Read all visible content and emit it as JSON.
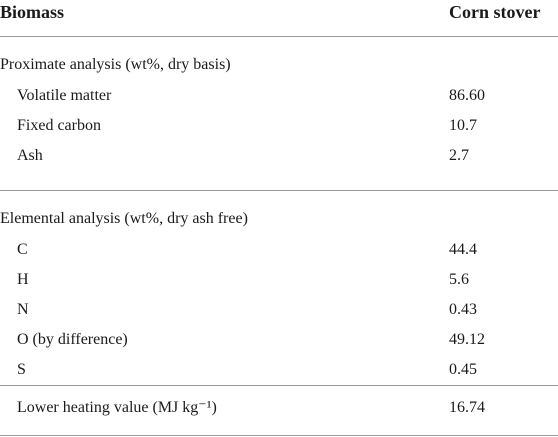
{
  "header": {
    "col1": "Biomass",
    "col2": "Corn stover"
  },
  "sections": [
    {
      "title": "Proximate analysis (wt%, dry basis)",
      "rows": [
        {
          "label": "Volatile matter",
          "value": "86.60"
        },
        {
          "label": "Fixed carbon",
          "value": "10.7"
        },
        {
          "label": "Ash",
          "value": "2.7"
        }
      ]
    },
    {
      "title": "Elemental analysis (wt%, dry ash free)",
      "rows": [
        {
          "label": "C",
          "value": "44.4"
        },
        {
          "label": "H",
          "value": "5.6"
        },
        {
          "label": "N",
          "value": "0.43"
        },
        {
          "label": "O (by difference)",
          "value": "49.12"
        },
        {
          "label": "S",
          "value": "0.45"
        }
      ]
    }
  ],
  "footer_row": {
    "label": "Lower heating value (MJ kg⁻¹)",
    "value": "16.74"
  }
}
